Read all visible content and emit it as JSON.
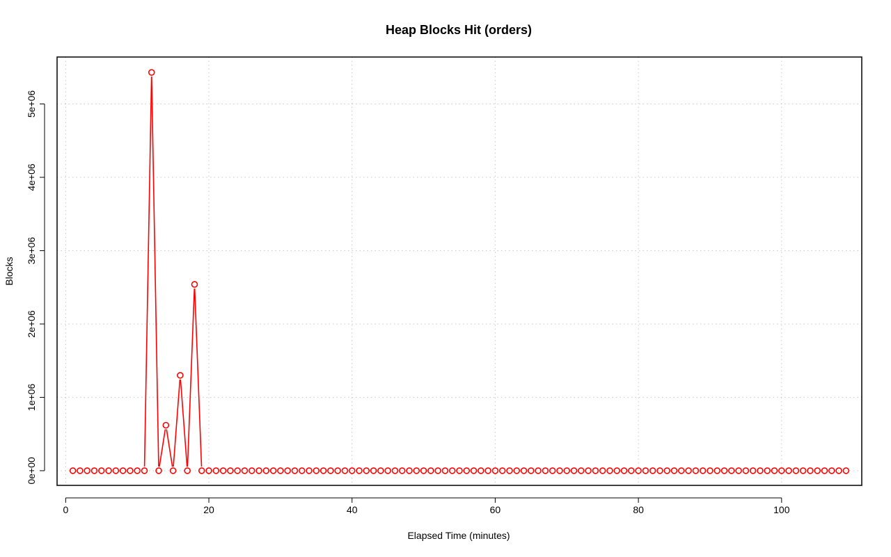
{
  "chart_data": {
    "type": "line",
    "title": "Heap Blocks Hit (orders)",
    "xlabel": "Elapsed Time (minutes)",
    "ylabel": "Blocks",
    "xlim": [
      -1.2,
      111.2
    ],
    "ylim": [
      -200000,
      5640000
    ],
    "x_ticks": [
      0,
      20,
      40,
      60,
      80,
      100
    ],
    "x_tick_labels": [
      "0",
      "20",
      "40",
      "60",
      "80",
      "100"
    ],
    "y_ticks": [
      0,
      1000000,
      2000000,
      3000000,
      4000000,
      5000000
    ],
    "y_tick_labels": [
      "0e+00",
      "1e+06",
      "2e+06",
      "3e+06",
      "4e+06",
      "5e+06"
    ],
    "grid": true,
    "line_color": "#ff0000",
    "marker": "open-circle",
    "x": [
      1,
      2,
      3,
      4,
      5,
      6,
      7,
      8,
      9,
      10,
      11,
      12,
      13,
      14,
      15,
      16,
      17,
      18,
      19,
      20,
      21,
      22,
      23,
      24,
      25,
      26,
      27,
      28,
      29,
      30,
      31,
      32,
      33,
      34,
      35,
      36,
      37,
      38,
      39,
      40,
      41,
      42,
      43,
      44,
      45,
      46,
      47,
      48,
      49,
      50,
      51,
      52,
      53,
      54,
      55,
      56,
      57,
      58,
      59,
      60,
      61,
      62,
      63,
      64,
      65,
      66,
      67,
      68,
      69,
      70,
      71,
      72,
      73,
      74,
      75,
      76,
      77,
      78,
      79,
      80,
      81,
      82,
      83,
      84,
      85,
      86,
      87,
      88,
      89,
      90,
      91,
      92,
      93,
      94,
      95,
      96,
      97,
      98,
      99,
      100,
      101,
      102,
      103,
      104,
      105,
      106,
      107,
      108,
      109
    ],
    "y": [
      0,
      0,
      0,
      0,
      0,
      0,
      0,
      0,
      0,
      0,
      0,
      5430000,
      0,
      620000,
      0,
      1300000,
      0,
      2540000,
      0,
      0,
      0,
      0,
      0,
      0,
      0,
      0,
      0,
      0,
      0,
      0,
      0,
      0,
      0,
      0,
      0,
      0,
      0,
      0,
      0,
      0,
      0,
      0,
      0,
      0,
      0,
      0,
      0,
      0,
      0,
      0,
      0,
      0,
      0,
      0,
      0,
      0,
      0,
      0,
      0,
      0,
      0,
      0,
      0,
      0,
      0,
      0,
      0,
      0,
      0,
      0,
      0,
      0,
      0,
      0,
      0,
      0,
      0,
      0,
      0,
      0,
      0,
      0,
      0,
      0,
      0,
      0,
      0,
      0,
      0,
      0,
      0,
      0,
      0,
      0,
      0,
      0,
      0,
      0,
      0,
      0,
      0,
      0,
      0,
      0,
      0,
      0,
      0,
      0,
      0
    ]
  }
}
